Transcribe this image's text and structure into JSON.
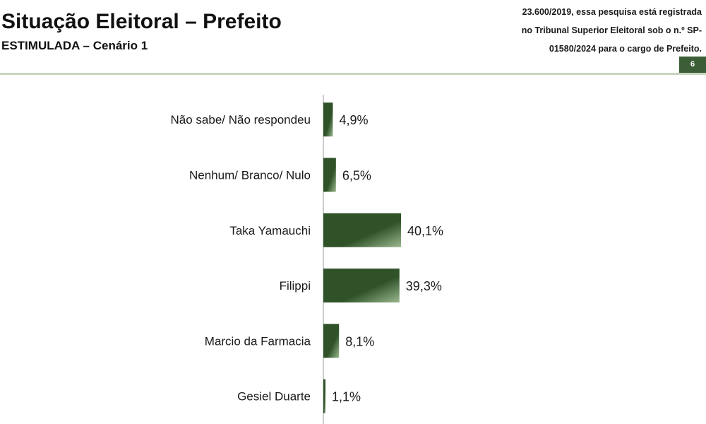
{
  "header": {
    "title": "Situação Eleitoral – Prefeito",
    "subtitle": "ESTIMULADA – Cenário 1",
    "note_lines": [
      "23.600/2019, essa pesquisa está registrada",
      "no Tribunal Superior Eleitoral sob o n.º SP-",
      "01580/2024 para o cargo de Prefeito."
    ],
    "page_number": "6"
  },
  "colors": {
    "bar_dark": "#2f5229",
    "bar_light": "#9bb88f",
    "accent": "#3b5e36",
    "rule": "#c9d4bf"
  },
  "chart_data": {
    "type": "bar",
    "orientation": "horizontal",
    "categories": [
      "Não sabe/ Não respondeu",
      "Nenhum/ Branco/ Nulo",
      "Taka Yamauchi",
      "Filippi",
      "Marcio da Farmacia",
      "Gesiel Duarte"
    ],
    "values": [
      4.9,
      6.5,
      40.1,
      39.3,
      8.1,
      1.1
    ],
    "value_labels": [
      "4,9%",
      "6,5%",
      "40,1%",
      "39,3%",
      "8,1%",
      "1,1%"
    ],
    "unit": "%",
    "grid": false
  }
}
